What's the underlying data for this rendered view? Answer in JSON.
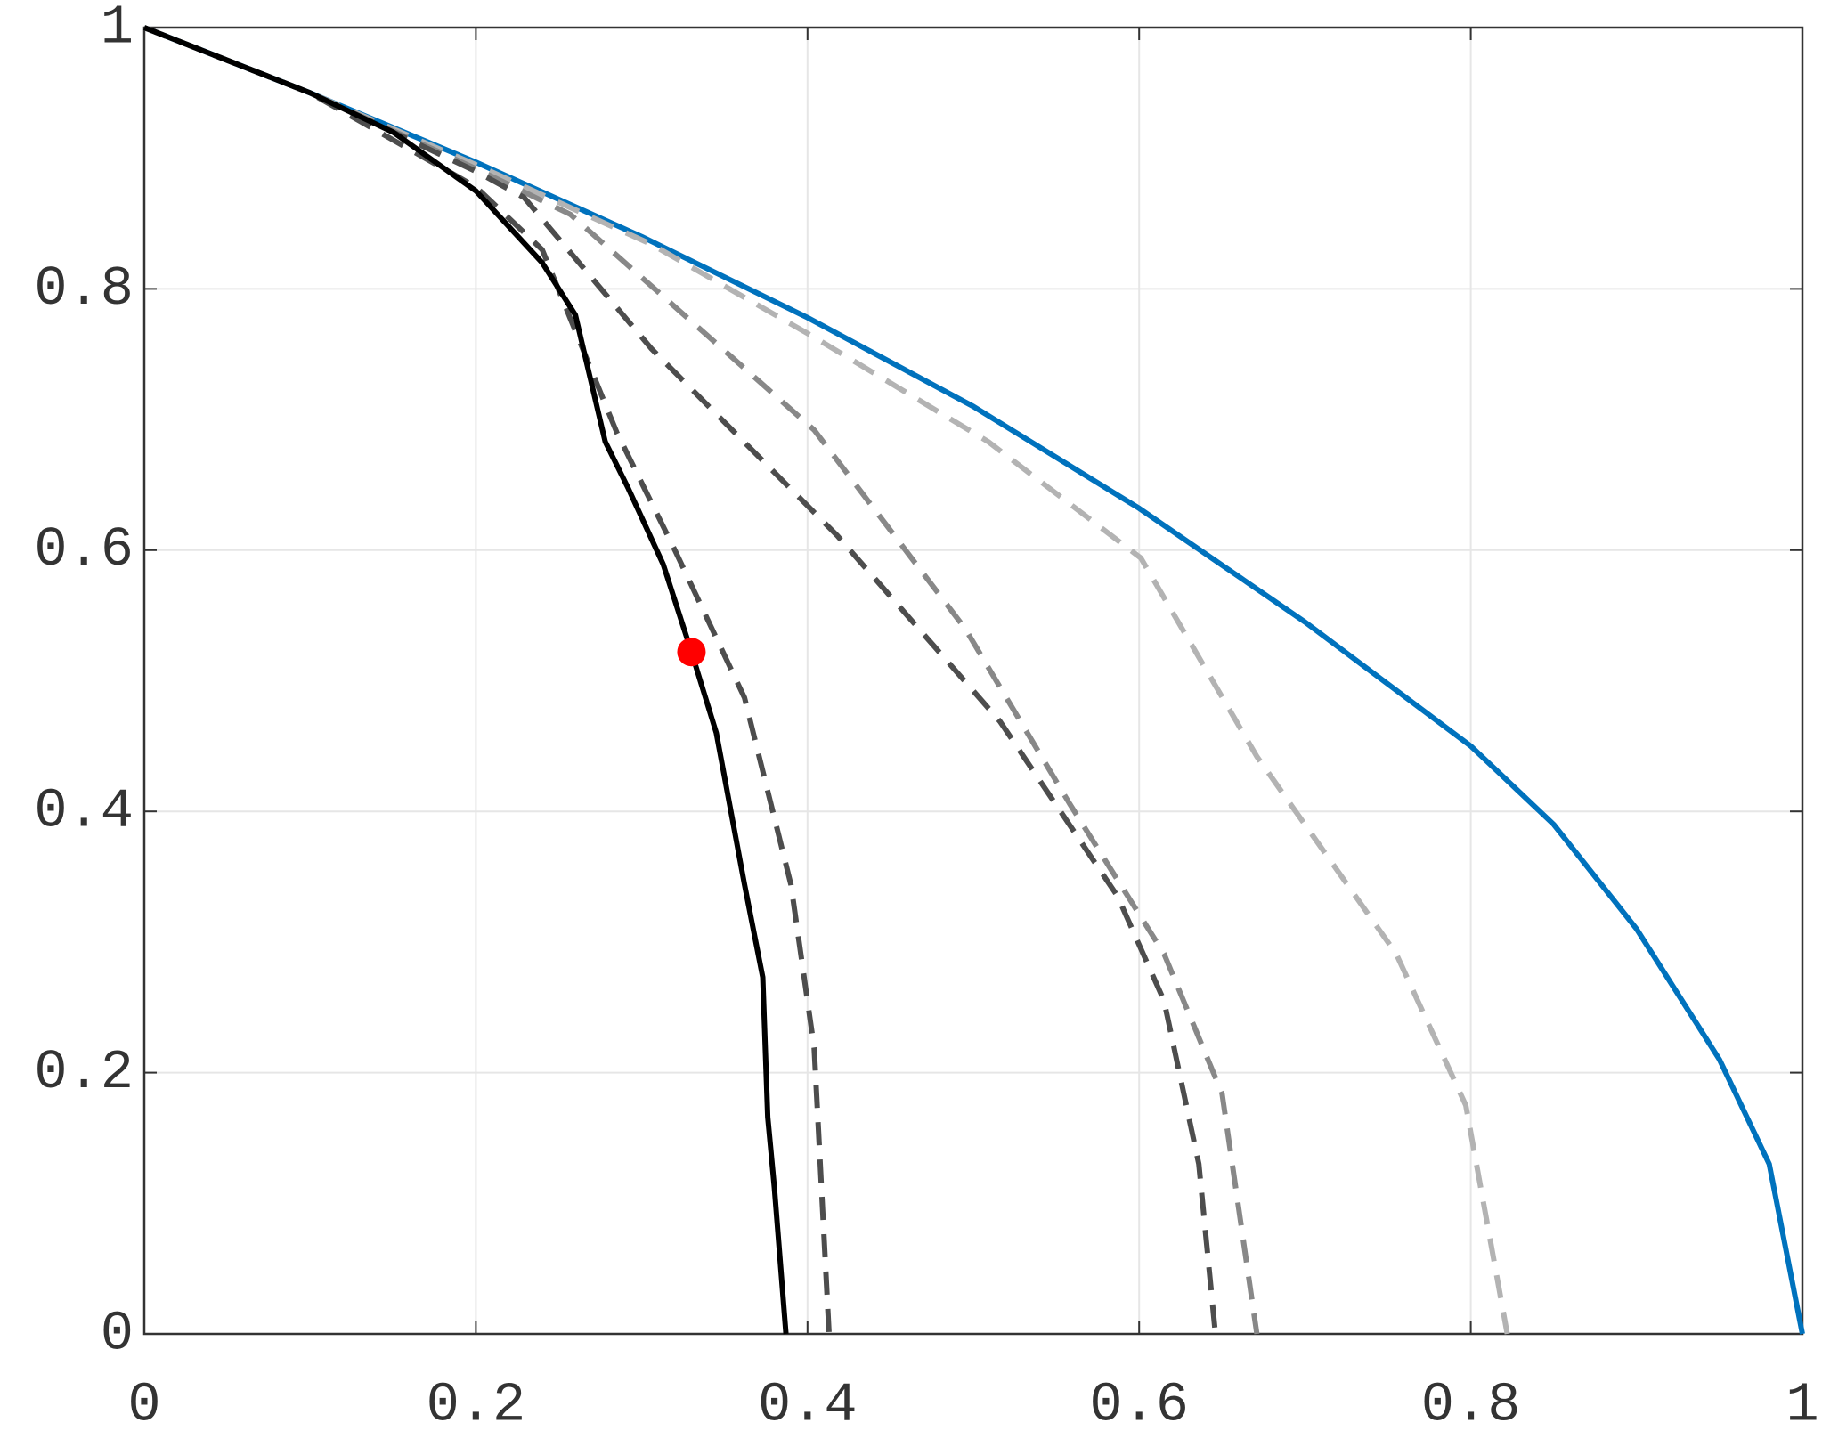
{
  "chart_data": {
    "type": "line",
    "xlim": [
      0,
      1
    ],
    "ylim": [
      0,
      1
    ],
    "xticks": [
      0,
      0.2,
      0.4,
      0.6,
      0.8,
      1
    ],
    "yticks": [
      0,
      0.2,
      0.4,
      0.6,
      0.8,
      1
    ],
    "grid": true,
    "series": [
      {
        "color": "#0072bd",
        "dash": false,
        "x": [
          0,
          0.1,
          0.2,
          0.3,
          0.4,
          0.5,
          0.6,
          0.7,
          0.8,
          0.85,
          0.9,
          0.95,
          0.98,
          1
        ],
        "values": [
          1,
          0.95,
          0.897,
          0.84,
          0.778,
          0.71,
          0.632,
          0.545,
          0.45,
          0.39,
          0.31,
          0.21,
          0.13,
          0
        ]
      },
      {
        "color": "#b3b3b3",
        "dash": true,
        "x": [
          0,
          0.1,
          0.2,
          0.306,
          0.404,
          0.509,
          0.601,
          0.671,
          0.755,
          0.797,
          0.822
        ],
        "values": [
          1,
          0.95,
          0.895,
          0.834,
          0.763,
          0.683,
          0.594,
          0.442,
          0.291,
          0.175,
          0
        ]
      },
      {
        "color": "#888888",
        "dash": true,
        "x": [
          0,
          0.1,
          0.2,
          0.257,
          0.404,
          0.495,
          0.558,
          0.615,
          0.65,
          0.671
        ],
        "values": [
          1,
          0.95,
          0.892,
          0.857,
          0.692,
          0.54,
          0.406,
          0.291,
          0.184,
          0
        ]
      },
      {
        "color": "#4d4d4d",
        "dash": true,
        "x": [
          0,
          0.1,
          0.2,
          0.229,
          0.306,
          0.418,
          0.516,
          0.587,
          0.615,
          0.636,
          0.646
        ],
        "values": [
          1,
          0.95,
          0.89,
          0.87,
          0.754,
          0.611,
          0.469,
          0.335,
          0.255,
          0.13,
          0
        ]
      },
      {
        "color": "#4d4d4d",
        "dash": true,
        "x": [
          0,
          0.1,
          0.2,
          0.24,
          0.285,
          0.32,
          0.362,
          0.39,
          0.404,
          0.413
        ],
        "values": [
          1,
          0.95,
          0.878,
          0.83,
          0.69,
          0.6,
          0.487,
          0.344,
          0.219,
          0
        ]
      },
      {
        "color": "#000000",
        "dash": false,
        "x": [
          0,
          0.1,
          0.15,
          0.2,
          0.24,
          0.26,
          0.278,
          0.292,
          0.313,
          0.33,
          0.345,
          0.362,
          0.373,
          0.376,
          0.38,
          0.387
        ],
        "values": [
          1,
          0.95,
          0.92,
          0.875,
          0.82,
          0.78,
          0.683,
          0.647,
          0.589,
          0.522,
          0.46,
          0.344,
          0.273,
          0.166,
          0.112,
          0
        ]
      }
    ],
    "point": {
      "x": 0.33,
      "value": 0.522,
      "color": "#ff0000"
    }
  }
}
